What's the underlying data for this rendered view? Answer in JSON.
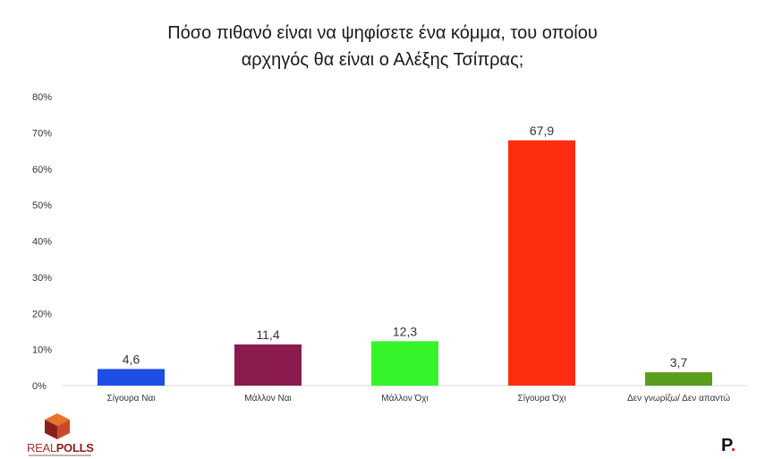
{
  "chart_data": {
    "type": "bar",
    "title_lines": [
      "Πόσο πιθανό είναι να ψηφίσετε ένα κόμμα, του οποίου",
      "αρχηγός θα είναι ο Αλέξης Τσίπρας;"
    ],
    "categories": [
      "Σίγουρα Ναι",
      "Μάλλον Ναι",
      "Μάλλον Όχι",
      "Σίγουρα Όχι",
      "Δεν γνωρίζω/ Δεν απαντώ"
    ],
    "values": [
      4.6,
      11.4,
      12.3,
      67.9,
      3.7
    ],
    "value_labels": [
      "4,6",
      "11,4",
      "12,3",
      "67,9",
      "3,7"
    ],
    "colors": [
      "#1f4de8",
      "#8b1a4f",
      "#35f52a",
      "#ff2d10",
      "#5a9e1e"
    ],
    "ylim": [
      0,
      80
    ],
    "yticks": [
      0,
      10,
      20,
      30,
      40,
      50,
      60,
      70,
      80
    ],
    "ytick_labels": [
      "0%",
      "10%",
      "20%",
      "30%",
      "40%",
      "50%",
      "60%",
      "70%",
      "80%"
    ],
    "grid": false,
    "legend": "none",
    "xlabel": "",
    "ylabel": ""
  },
  "logos": {
    "left_brand_a": "REAL",
    "left_brand_b": "POLLS",
    "right_letter": "P",
    "right_dot": "."
  }
}
